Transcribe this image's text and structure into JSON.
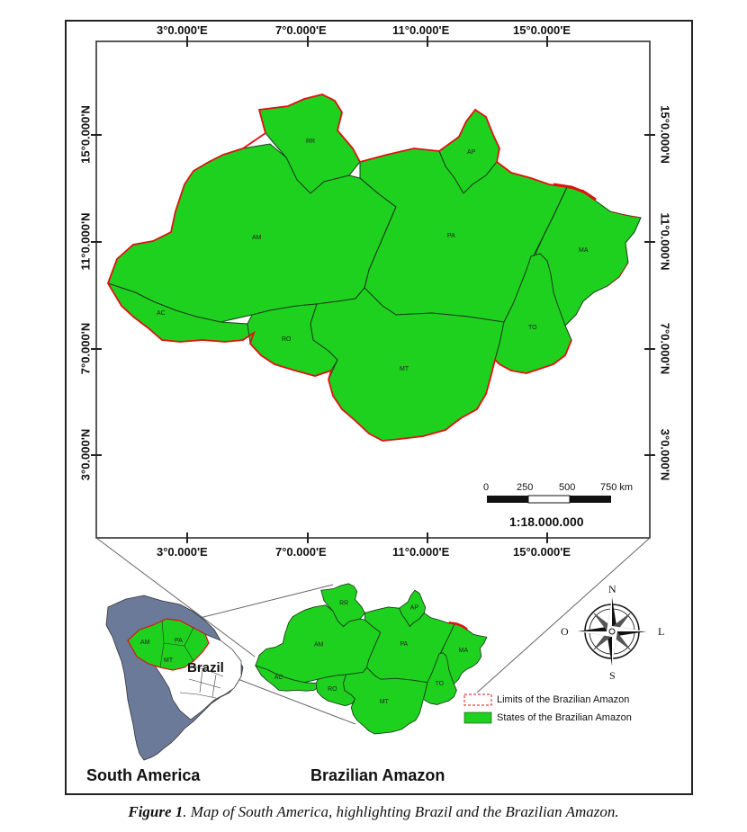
{
  "map": {
    "top_longitude_labels": [
      "3°0.000'E",
      "7°0.000'E",
      "11°0.000'E",
      "15°0.000'E"
    ],
    "bottom_longitude_labels": [
      "3°0.000'E",
      "7°0.000'E",
      "11°0.000'E",
      "15°0.000'E"
    ],
    "left_latitude_labels": [
      "15°0.000'N",
      "11°0.000'N",
      "7°0.000'N",
      "3°0.000'N"
    ],
    "right_latitude_labels": [
      "15°0.000'N",
      "11°0.000'N",
      "7°0.000'N",
      "3°0.000'N"
    ],
    "states": [
      "RR",
      "AP",
      "AM",
      "PA",
      "MA",
      "AC",
      "RO",
      "MT",
      "TO"
    ],
    "scale_bar": {
      "ticks": [
        "0",
        "250",
        "500",
        "750 km"
      ],
      "ratio": "1:18.000.000"
    },
    "colors": {
      "state_fill": "#1fd11f",
      "state_border": "#1a3b1a",
      "limit_border": "#e01010",
      "south_america_fill": "#6a7a98"
    }
  },
  "inset": {
    "south_america_label": "South America",
    "brazil_label": "Brazil",
    "brazilian_amazon_label": "Brazilian Amazon",
    "inset_states": [
      "RR",
      "AP",
      "AM",
      "PA",
      "MA",
      "AC",
      "RO",
      "MT",
      "TO"
    ],
    "mini_states": [
      "AM",
      "PA",
      "MT"
    ]
  },
  "compass": {
    "north": "N",
    "south": "S",
    "east": "L",
    "west": "O"
  },
  "legend": {
    "items": [
      {
        "label": "Limits of the Brazilian Amazon",
        "symbol": "dashed-red-box"
      },
      {
        "label": "States of the Brazilian Amazon",
        "symbol": "green-box"
      }
    ]
  },
  "caption": {
    "prefix": "Figure 1",
    "text": ". Map of South America, highlighting Brazil and the Brazilian Amazon."
  }
}
